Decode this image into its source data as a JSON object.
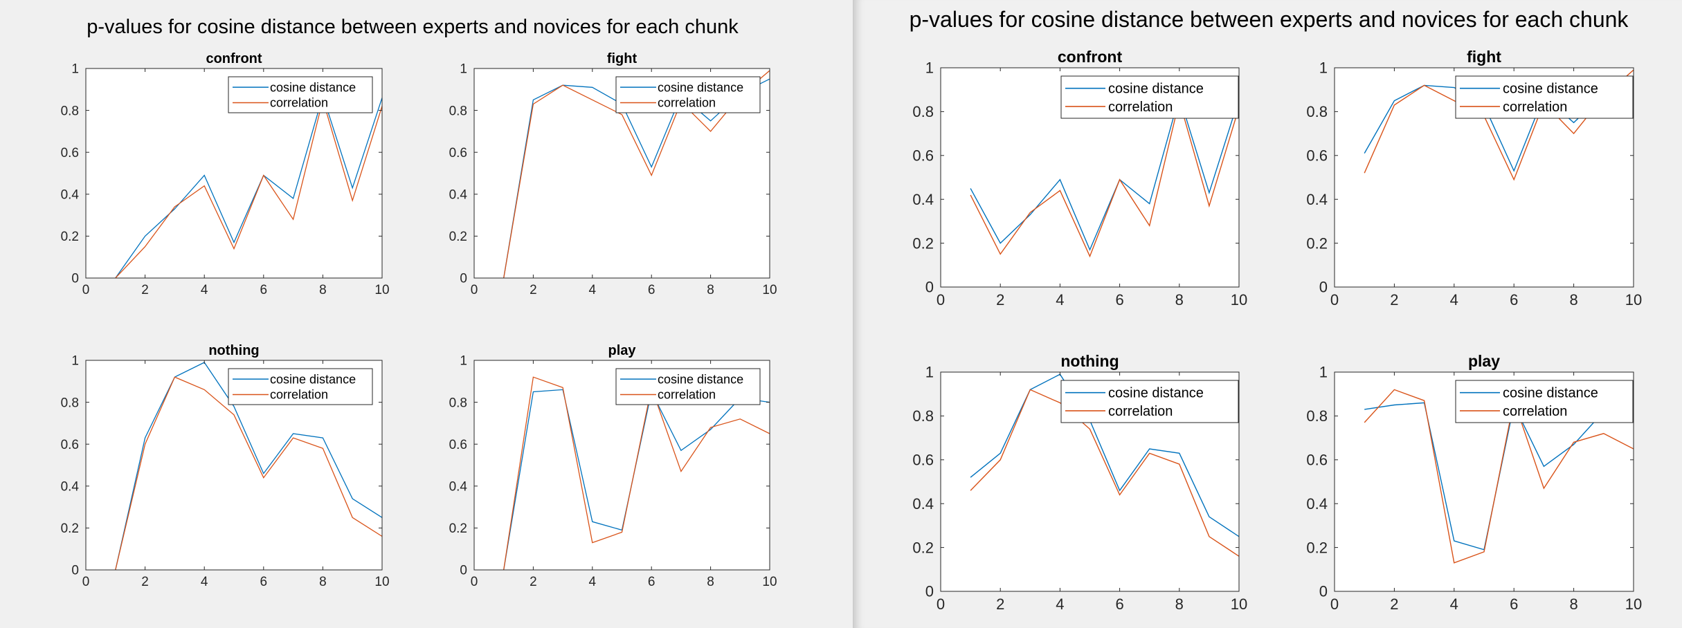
{
  "figures": [
    {
      "id": "left",
      "title": "p-values for cosine distance between experts and novices for each chunk"
    },
    {
      "id": "right",
      "title": "p-values for cosine distance between experts and novices for each chunk"
    }
  ],
  "chart_data": [
    {
      "type": "line",
      "title": "confront",
      "x": [
        1,
        2,
        3,
        4,
        5,
        6,
        7,
        8,
        9,
        10
      ],
      "xlim": [
        0,
        10
      ],
      "ylim": [
        0,
        1
      ],
      "xticks": [
        "0",
        "2",
        "4",
        "6",
        "8",
        "10"
      ],
      "yticks": [
        "0",
        "0.2",
        "0.4",
        "0.6",
        "0.8",
        "1"
      ],
      "legend": "top-right",
      "series": [
        {
          "name": "cosine distance",
          "color": "#0072bd",
          "values": [
            0.45,
            0.2,
            0.33,
            0.49,
            0.17,
            0.49,
            0.38,
            0.87,
            0.43,
            0.86
          ]
        },
        {
          "name": "correlation",
          "color": "#d95319",
          "values": [
            0.42,
            0.15,
            0.34,
            0.44,
            0.14,
            0.49,
            0.28,
            0.85,
            0.37,
            0.82
          ]
        }
      ]
    },
    {
      "type": "line",
      "title": "fight",
      "x": [
        1,
        2,
        3,
        4,
        5,
        6,
        7,
        8,
        9,
        10
      ],
      "xlim": [
        0,
        10
      ],
      "ylim": [
        0,
        1
      ],
      "xticks": [
        "0",
        "2",
        "4",
        "6",
        "8",
        "10"
      ],
      "yticks": [
        "0",
        "0.2",
        "0.4",
        "0.6",
        "0.8",
        "1"
      ],
      "legend": "top-right",
      "series": [
        {
          "name": "cosine distance",
          "color": "#0072bd",
          "values": [
            0.61,
            0.85,
            0.92,
            0.91,
            0.83,
            0.53,
            0.87,
            0.75,
            0.88,
            0.95
          ]
        },
        {
          "name": "correlation",
          "color": "#d95319",
          "values": [
            0.52,
            0.83,
            0.92,
            0.85,
            0.78,
            0.49,
            0.84,
            0.7,
            0.87,
            0.99
          ]
        }
      ]
    },
    {
      "type": "line",
      "title": "nothing",
      "x": [
        1,
        2,
        3,
        4,
        5,
        6,
        7,
        8,
        9,
        10
      ],
      "xlim": [
        0,
        10
      ],
      "ylim": [
        0,
        1
      ],
      "xticks": [
        "0",
        "2",
        "4",
        "6",
        "8",
        "10"
      ],
      "yticks": [
        "0",
        "0.2",
        "0.4",
        "0.6",
        "0.8",
        "1"
      ],
      "legend": "top-right",
      "series": [
        {
          "name": "cosine distance",
          "color": "#0072bd",
          "values": [
            0.52,
            0.63,
            0.92,
            0.99,
            0.78,
            0.46,
            0.65,
            0.63,
            0.34,
            0.25
          ]
        },
        {
          "name": "correlation",
          "color": "#d95319",
          "values": [
            0.46,
            0.6,
            0.92,
            0.86,
            0.74,
            0.44,
            0.63,
            0.58,
            0.25,
            0.16
          ]
        }
      ]
    },
    {
      "type": "line",
      "title": "play",
      "x": [
        1,
        2,
        3,
        4,
        5,
        6,
        7,
        8,
        9,
        10
      ],
      "xlim": [
        0,
        10
      ],
      "ylim": [
        0,
        1
      ],
      "xticks": [
        "0",
        "2",
        "4",
        "6",
        "8",
        "10"
      ],
      "yticks": [
        "0",
        "0.2",
        "0.4",
        "0.6",
        "0.8",
        "1"
      ],
      "legend": "top-right",
      "series": [
        {
          "name": "cosine distance",
          "color": "#0072bd",
          "values": [
            0.83,
            0.85,
            0.86,
            0.23,
            0.19,
            0.85,
            0.57,
            0.67,
            0.82,
            0.8
          ]
        },
        {
          "name": "correlation",
          "color": "#d95319",
          "values": [
            0.77,
            0.92,
            0.87,
            0.13,
            0.18,
            0.87,
            0.47,
            0.68,
            0.72,
            0.65
          ]
        }
      ]
    }
  ]
}
